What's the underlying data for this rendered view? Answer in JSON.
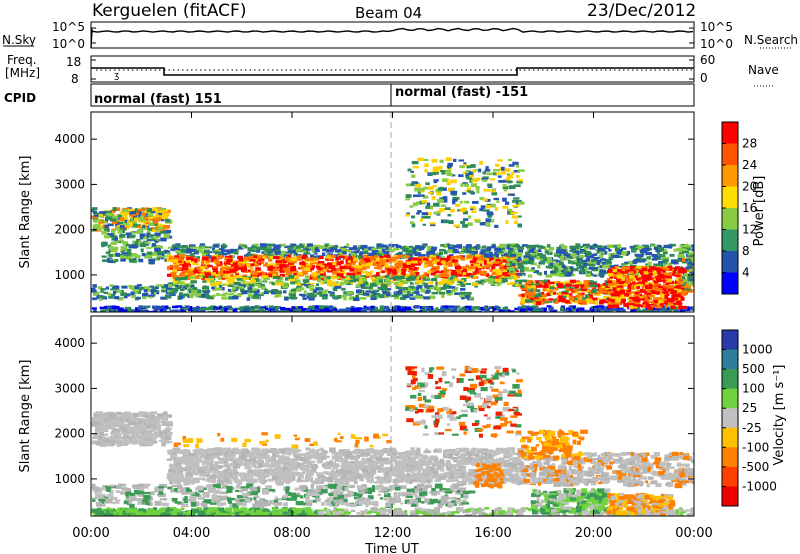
{
  "header": {
    "station": "Kerguelen (fitACF)",
    "beam": "Beam 04",
    "date": "23/Dec/2012"
  },
  "nsky_panel": {
    "label": "N.Sky",
    "left_ticks": [
      "10^5",
      "10^0"
    ],
    "right_ticks": [
      "10^5",
      "10^0"
    ],
    "right_label": "N.Search"
  },
  "freq_panel": {
    "label_line1": "Freq.",
    "label_line2": "[MHz]",
    "left_ticks": [
      "18",
      "8"
    ],
    "right_ticks": [
      "60",
      "0"
    ],
    "right_label": "Nave"
  },
  "cpid_panel": {
    "label": "CPID",
    "segments": [
      "normal (fast) 151",
      "normal (fast) -151"
    ]
  },
  "power_colorbar": {
    "label": "Power [dB]",
    "ticks": [
      "28",
      "24",
      "20",
      "16",
      "12",
      "8",
      "4"
    ],
    "colors": [
      "#ff0000",
      "#ff5500",
      "#ff9900",
      "#ffdd00",
      "#88cc44",
      "#339966",
      "#2255aa",
      "#0000ff"
    ]
  },
  "velocity_colorbar": {
    "label": "Velocity [m s⁻¹]",
    "ticks": [
      "1000",
      "500",
      "100",
      "25",
      "-25",
      "-100",
      "-500",
      "-1000"
    ],
    "colors": [
      "#2a3aa8",
      "#2e7d9a",
      "#3a9b55",
      "#6fd23e",
      "#c0c0c0",
      "#ffc000",
      "#ff8000",
      "#ff4000",
      "#ee0000"
    ]
  },
  "chart_data": [
    {
      "type": "line",
      "title": "N.Sky",
      "x": [
        "00:00",
        "04:00",
        "08:00",
        "12:00",
        "16:00",
        "20:00",
        "00:00"
      ],
      "ylabel": "N.Sky",
      "yscale": "log",
      "ylim": [
        "10^0",
        "10^5"
      ]
    },
    {
      "type": "line",
      "ylabel": "Freq. [MHz]",
      "ylim": [
        8,
        18
      ],
      "series": [
        {
          "name": "Freq.",
          "points": [
            [
              "00:00",
              13
            ],
            [
              "03:00",
              13
            ],
            [
              "03:00",
              11
            ],
            [
              "17:00",
              11
            ],
            [
              "17:00",
              13
            ],
            [
              "24:00",
              13
            ]
          ]
        }
      ]
    },
    {
      "type": "heatmap",
      "xlabel": "Time UT",
      "ylabel": "Slant Range [km]",
      "x_ticks": [
        "00:00",
        "04:00",
        "08:00",
        "12:00",
        "16:00",
        "20:00",
        "00:00"
      ],
      "y_ticks": [
        "1000",
        "2000",
        "3000",
        "4000"
      ],
      "xlim": [
        0,
        24
      ],
      "ylim": [
        180,
        4600
      ],
      "colorbar": "Power [dB]"
    },
    {
      "type": "heatmap",
      "xlabel": "Time UT",
      "ylabel": "Slant Range [km]",
      "x_ticks": [
        "00:00",
        "04:00",
        "08:00",
        "12:00",
        "16:00",
        "20:00",
        "00:00"
      ],
      "y_ticks": [
        "1000",
        "2000",
        "3000",
        "4000"
      ],
      "xlim": [
        0,
        24
      ],
      "ylim": [
        180,
        4600
      ],
      "colorbar": "Velocity [m s⁻¹]"
    }
  ],
  "x_axis_label": "Time UT",
  "x_tick_labels": [
    "00:00",
    "04:00",
    "08:00",
    "12:00",
    "16:00",
    "20:00",
    "00:00"
  ],
  "y_tick_labels": [
    "1000",
    "2000",
    "3000",
    "4000"
  ],
  "y_axis_label": "Slant Range [km]"
}
